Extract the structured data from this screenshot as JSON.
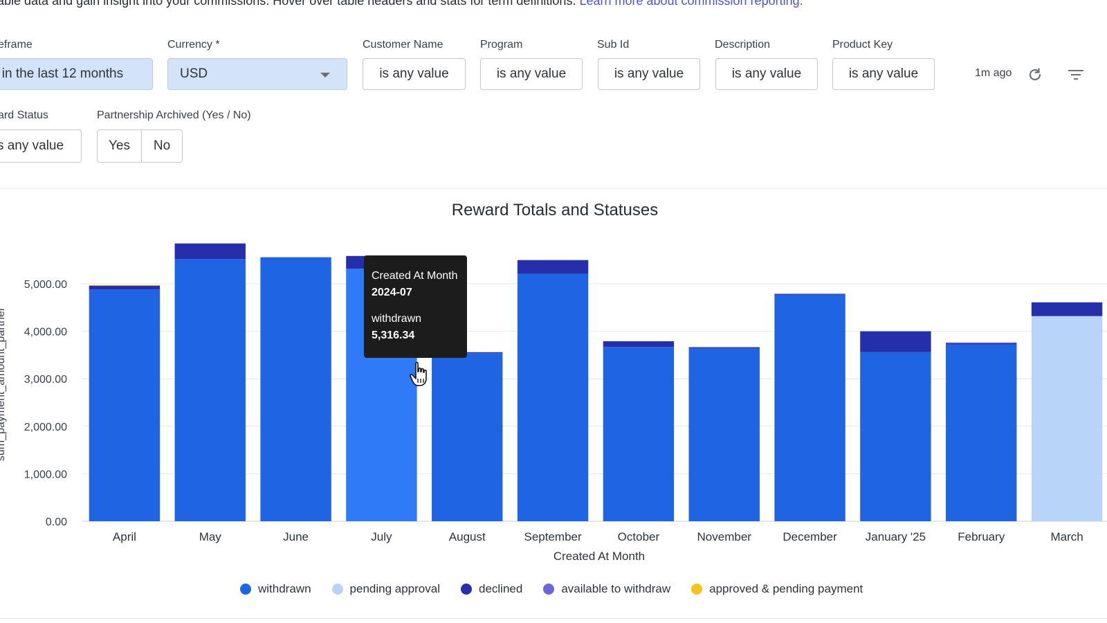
{
  "intro": {
    "text": "able data and gain insight into your commissions. Hover over table headers and stats for term definitions. ",
    "link_text": "Learn more about commission reporting."
  },
  "filters": {
    "timeframe": {
      "label": "eframe",
      "value": "s in the last 12 months"
    },
    "currency": {
      "label": "Currency *",
      "value": "USD"
    },
    "customer_name": {
      "label": "Customer Name",
      "value": "is any value"
    },
    "program": {
      "label": "Program",
      "value": "is any value"
    },
    "sub_id": {
      "label": "Sub Id",
      "value": "is any value"
    },
    "description": {
      "label": "Description",
      "value": "is any value"
    },
    "product_key": {
      "label": "Product Key",
      "value": "is any value"
    },
    "reward_status": {
      "label": "ard Status",
      "value": "s any value"
    },
    "partnership_archived": {
      "label": "Partnership Archived (Yes / No)",
      "yes": "Yes",
      "no": "No"
    }
  },
  "toolbar": {
    "last_updated": "1m ago",
    "refresh_icon": "refresh-icon",
    "filter_icon": "filter-icon"
  },
  "tooltip": {
    "title": "Created At Month",
    "month": "2024-07",
    "series": "withdrawn",
    "value": "5,316.34"
  },
  "colors": {
    "withdrawn": "#1f64e3",
    "withdrawn_hover": "#2f7af7",
    "pending_approval": "#b8d4f9",
    "declined": "#262fab",
    "available_to_withdraw": "#6b66d9",
    "approved_pending_payment": "#f4c322"
  },
  "chart_data": {
    "type": "bar",
    "stacked": true,
    "title": "Reward Totals and Statuses",
    "xlabel": "Created At Month",
    "ylabel": "sum_payment_amount_partner",
    "ylim": [
      0,
      5900
    ],
    "yticks": [
      "0.00",
      "1,000.00",
      "2,000.00",
      "3,000.00",
      "4,000.00",
      "5,000.00"
    ],
    "ytick_values": [
      0,
      1000,
      2000,
      3000,
      4000,
      5000
    ],
    "categories": [
      "April",
      "May",
      "June",
      "July",
      "August",
      "September",
      "October",
      "November",
      "December",
      "January '25",
      "February",
      "March"
    ],
    "series": [
      {
        "name": "withdrawn",
        "values": [
          4880,
          5520,
          5560,
          5316.34,
          3540,
          5210,
          3670,
          3640,
          4770,
          3560,
          3720,
          0
        ]
      },
      {
        "name": "pending approval",
        "values": [
          0,
          0,
          0,
          0,
          0,
          0,
          0,
          0,
          0,
          0,
          0,
          4320
        ]
      },
      {
        "name": "declined",
        "values": [
          80,
          330,
          0,
          270,
          20,
          290,
          120,
          25,
          20,
          440,
          30,
          290
        ]
      },
      {
        "name": "available to withdraw",
        "values": [
          0,
          0,
          0,
          0,
          0,
          0,
          0,
          0,
          0,
          0,
          15,
          0
        ]
      },
      {
        "name": "approved & pending payment",
        "values": [
          15,
          0,
          0,
          0,
          0,
          0,
          0,
          0,
          0,
          0,
          0,
          0
        ]
      }
    ],
    "highlight": {
      "category": "July",
      "series": "withdrawn"
    },
    "legend": [
      "withdrawn",
      "pending approval",
      "declined",
      "available to withdraw",
      "approved & pending payment"
    ],
    "legend_position": "bottom"
  }
}
